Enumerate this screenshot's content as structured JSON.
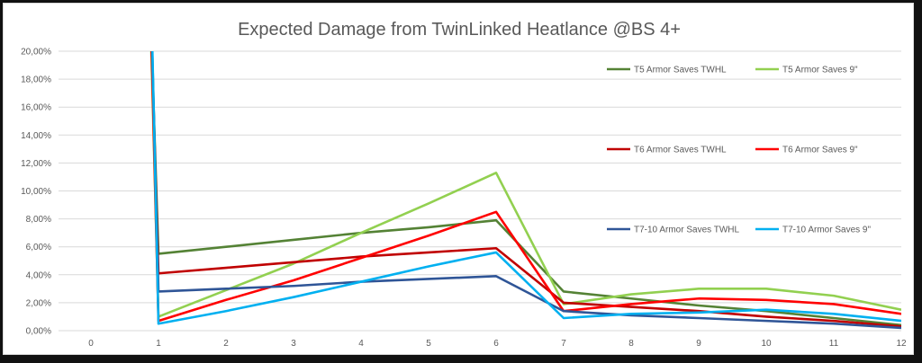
{
  "chart_data": {
    "type": "line",
    "title": "Expected Damage from TwinLinked Heatlance @BS 4+",
    "xlabel": "",
    "ylabel": "",
    "x": [
      0,
      1,
      2,
      3,
      4,
      5,
      6,
      7,
      8,
      9,
      10,
      11,
      12
    ],
    "ylim": [
      0,
      20
    ],
    "yticks": [
      0,
      2,
      4,
      6,
      8,
      10,
      12,
      14,
      16,
      18,
      20
    ],
    "ytick_labels": [
      "0,00%",
      "2,00%",
      "4,00%",
      "6,00%",
      "8,00%",
      "10,00%",
      "12,00%",
      "14,00%",
      "16,00%",
      "18,00%",
      "20,00%"
    ],
    "xtick_labels": [
      "0",
      "1",
      "2",
      "3",
      "4",
      "5",
      "6",
      "7",
      "8",
      "9",
      "10",
      "11",
      "12"
    ],
    "grid": "horizontal",
    "legend": "inside-right",
    "series": [
      {
        "name": "T5 Armor Saves TWHL",
        "color": "#548235",
        "values": [
          null,
          5.5,
          6.0,
          6.5,
          7.0,
          7.4,
          7.9,
          2.8,
          2.3,
          1.8,
          1.4,
          0.9,
          0.4
        ]
      },
      {
        "name": "T5 Armor Saves 9\"",
        "color": "#92d050",
        "values": [
          null,
          1.0,
          2.9,
          4.8,
          7.0,
          9.1,
          11.3,
          1.9,
          2.6,
          3.0,
          3.0,
          2.5,
          1.5
        ]
      },
      {
        "name": "T6 Armor Saves TWHL",
        "color": "#c00000",
        "values": [
          null,
          4.1,
          4.5,
          4.9,
          5.3,
          5.6,
          5.9,
          2.0,
          1.7,
          1.4,
          1.0,
          0.7,
          0.3
        ]
      },
      {
        "name": "T6 Armor Saves 9\"",
        "color": "#ff0000",
        "values": [
          null,
          0.7,
          2.2,
          3.6,
          5.2,
          6.8,
          8.5,
          1.4,
          1.9,
          2.3,
          2.2,
          1.9,
          1.2
        ]
      },
      {
        "name": "T7-10 Armor Saves TWHL",
        "color": "#2f5597",
        "values": [
          null,
          2.8,
          3.0,
          3.2,
          3.5,
          3.7,
          3.9,
          1.4,
          1.1,
          0.9,
          0.7,
          0.5,
          0.2
        ]
      },
      {
        "name": "T7-10 Armor Saves 9\"",
        "color": "#00b0f0",
        "values": [
          null,
          0.5,
          1.4,
          2.4,
          3.5,
          4.6,
          5.6,
          0.9,
          1.2,
          1.3,
          1.5,
          1.2,
          0.7
        ]
      }
    ]
  }
}
